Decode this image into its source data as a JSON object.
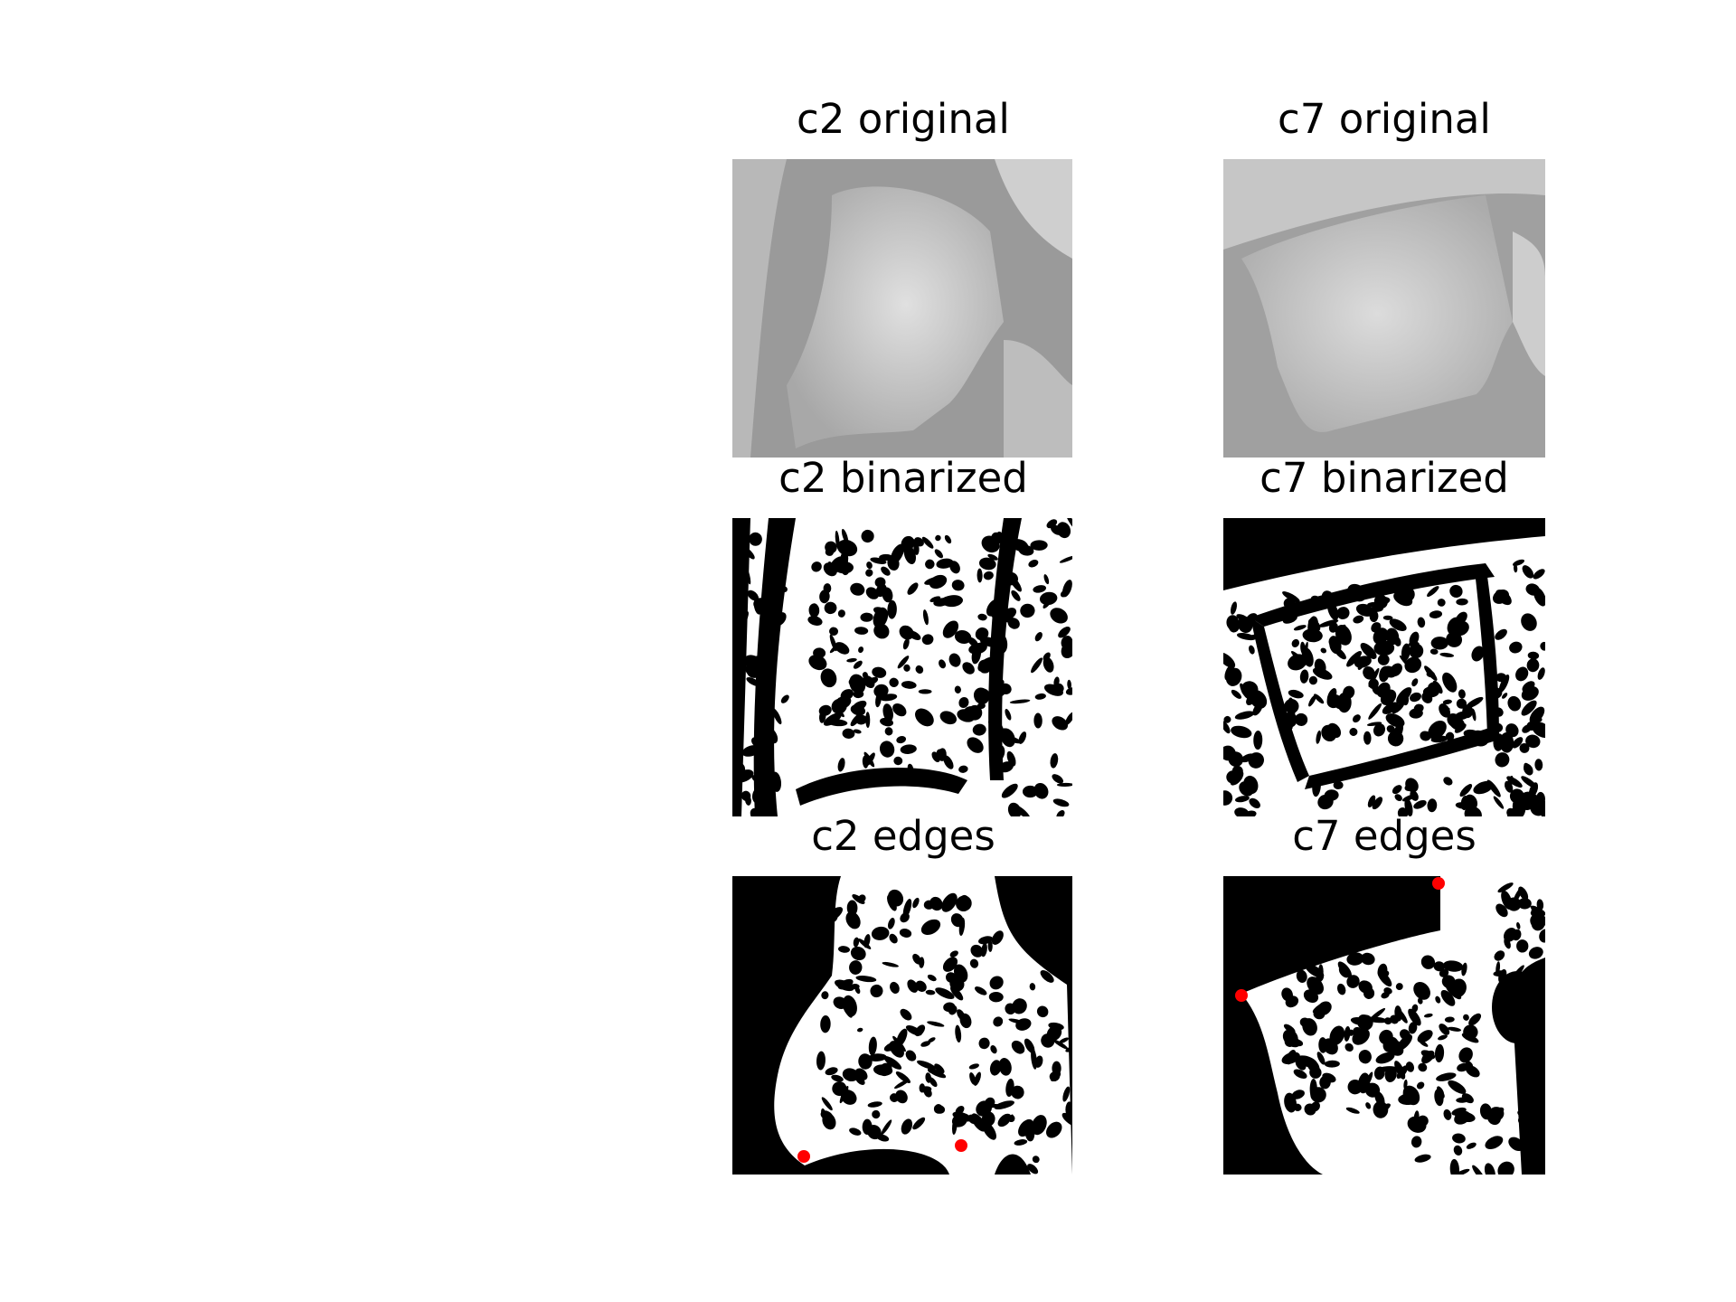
{
  "panels": {
    "c2_original": {
      "title": "c2 original",
      "kind": "xray-grayscale"
    },
    "c7_original": {
      "title": "c7 original",
      "kind": "xray-grayscale"
    },
    "c2_binarized": {
      "title": "c2 binarized",
      "kind": "binary-mask"
    },
    "c7_binarized": {
      "title": "c7 binarized",
      "kind": "binary-mask"
    },
    "c2_edges": {
      "title": "c2 edges",
      "kind": "edge-mask",
      "marker_color": "#ff0000",
      "marker_count": 2
    },
    "c7_edges": {
      "title": "c7 edges",
      "kind": "edge-mask",
      "marker_color": "#ff0000",
      "marker_count": 2
    }
  },
  "colors": {
    "background": "#ffffff",
    "mask_fg": "#ffffff",
    "mask_bg": "#000000",
    "marker": "#ff0000"
  }
}
